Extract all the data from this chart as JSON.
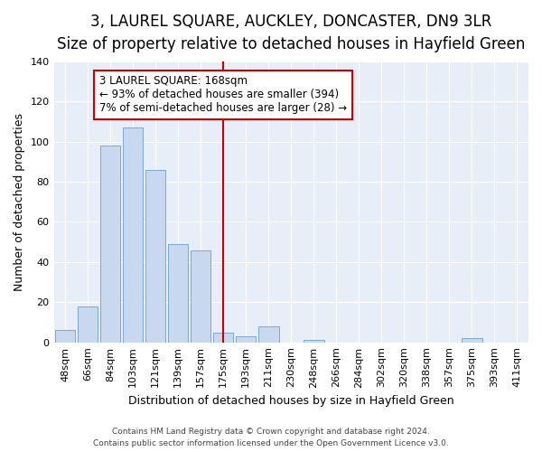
{
  "title": "3, LAUREL SQUARE, AUCKLEY, DONCASTER, DN9 3LR",
  "subtitle": "Size of property relative to detached houses in Hayfield Green",
  "xlabel": "Distribution of detached houses by size in Hayfield Green",
  "ylabel": "Number of detached properties",
  "categories": [
    "48sqm",
    "66sqm",
    "84sqm",
    "103sqm",
    "121sqm",
    "139sqm",
    "157sqm",
    "175sqm",
    "193sqm",
    "211sqm",
    "230sqm",
    "248sqm",
    "266sqm",
    "284sqm",
    "302sqm",
    "320sqm",
    "338sqm",
    "357sqm",
    "375sqm",
    "393sqm",
    "411sqm"
  ],
  "values": [
    6,
    18,
    98,
    107,
    86,
    49,
    46,
    5,
    3,
    8,
    0,
    1,
    0,
    0,
    0,
    0,
    0,
    0,
    2,
    0,
    0
  ],
  "bar_color": "#c8d8ee",
  "bar_edge_color": "#7aaad0",
  "vline_x": 7,
  "vline_color": "#cc0000",
  "annotation_line1": "3 LAUREL SQUARE: 168sqm",
  "annotation_line2": "← 93% of detached houses are smaller (394)",
  "annotation_line3": "7% of semi-detached houses are larger (28) →",
  "annotation_box_color": "#ffffff",
  "annotation_box_edge": "#cc0000",
  "ylim": [
    0,
    140
  ],
  "yticks": [
    0,
    20,
    40,
    60,
    80,
    100,
    120,
    140
  ],
  "title_fontsize": 12,
  "subtitle_fontsize": 10,
  "xlabel_fontsize": 9,
  "ylabel_fontsize": 9,
  "tick_fontsize": 8,
  "footer_line1": "Contains HM Land Registry data © Crown copyright and database right 2024.",
  "footer_line2": "Contains public sector information licensed under the Open Government Licence v3.0.",
  "fig_bg": "#ffffff",
  "plot_bg": "#e8eef8"
}
